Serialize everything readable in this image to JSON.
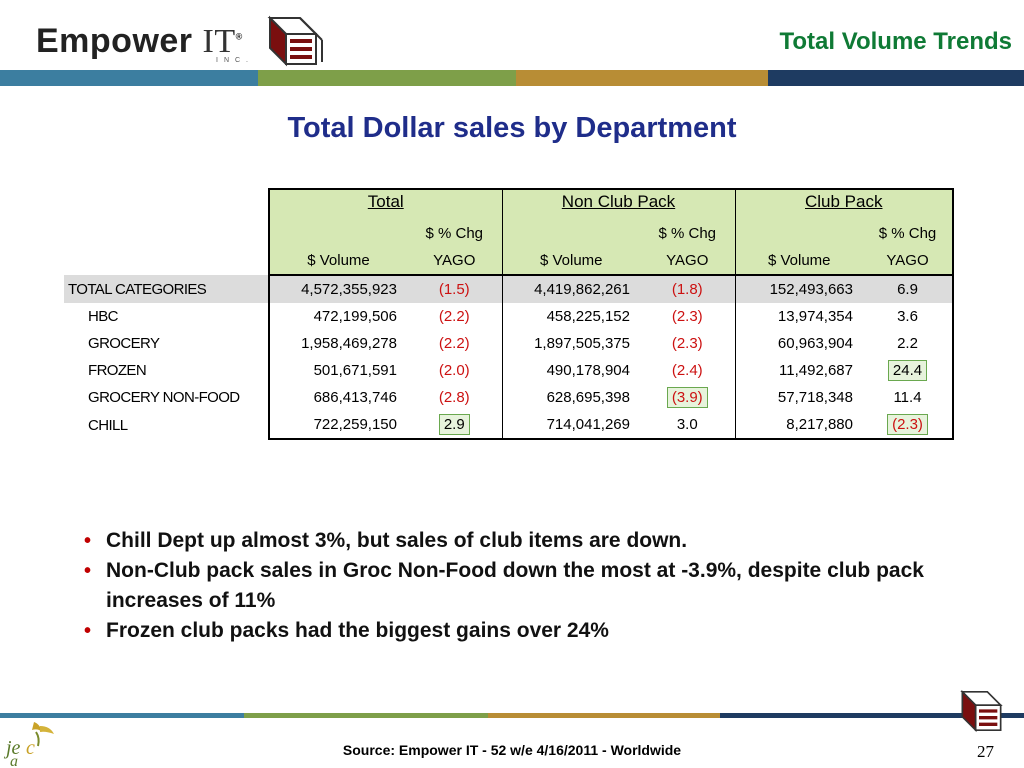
{
  "header": {
    "logo_word": "Empower",
    "logo_it": "IT",
    "logo_reg": "®",
    "logo_inc": "INC.",
    "title": "Total Volume Trends",
    "colors": {
      "title": "#0f7a35",
      "bar_blue": "#3c7ea0",
      "bar_green": "#7e9f49",
      "bar_gold": "#b88d35",
      "bar_navy": "#1e3b61"
    }
  },
  "slide_title": "Total Dollar sales by Department",
  "table": {
    "groups": [
      "Total ",
      "Non Club Pack",
      "Club Pack"
    ],
    "sub_top": [
      "",
      "$ % Chg",
      "",
      "$ % Chg",
      "",
      "$ % Chg"
    ],
    "sub_bottom": [
      "$ Volume",
      "YAGO",
      "$ Volume",
      "YAGO",
      "$ Volume",
      "YAGO"
    ],
    "rows": [
      {
        "label": "TOTAL CATEGORIES",
        "total_vol": "4,572,355,923",
        "total_chg": "(1.5)",
        "nc_vol": "4,419,862,261",
        "nc_chg": "(1.8)",
        "cp_vol": "152,493,663",
        "cp_chg": "6.9"
      },
      {
        "label": "HBC",
        "total_vol": "472,199,506",
        "total_chg": "(2.2)",
        "nc_vol": "458,225,152",
        "nc_chg": "(2.3)",
        "cp_vol": "13,974,354",
        "cp_chg": "3.6"
      },
      {
        "label": "GROCERY",
        "total_vol": "1,958,469,278",
        "total_chg": "(2.2)",
        "nc_vol": "1,897,505,375",
        "nc_chg": "(2.3)",
        "cp_vol": "60,963,904",
        "cp_chg": "2.2"
      },
      {
        "label": "FROZEN",
        "total_vol": "501,671,591",
        "total_chg": "(2.0)",
        "nc_vol": "490,178,904",
        "nc_chg": "(2.4)",
        "cp_vol": "11,492,687",
        "cp_chg": "24.4"
      },
      {
        "label": "GROCERY NON-FOOD",
        "total_vol": "686,413,746",
        "total_chg": "(2.8)",
        "nc_vol": "628,695,398",
        "nc_chg": "(3.9)",
        "cp_vol": "57,718,348",
        "cp_chg": "11.4"
      },
      {
        "label": "CHILL",
        "total_vol": "722,259,150",
        "total_chg": "2.9",
        "nc_vol": "714,041,269",
        "nc_chg": "3.0",
        "cp_vol": "8,217,880",
        "cp_chg": "(2.3)"
      }
    ]
  },
  "bullets": [
    "Chill Dept up almost 3%, but sales of club items are down.",
    "Non-Club pack sales in Groc Non-Food down the most at -3.9%, despite club pack increases of 11%",
    "Frozen club packs had the biggest gains over 24%"
  ],
  "footer": {
    "source": "Source:  Empower IT - 52 w/e 4/16/2011 - Worldwide",
    "page_number": "27"
  }
}
